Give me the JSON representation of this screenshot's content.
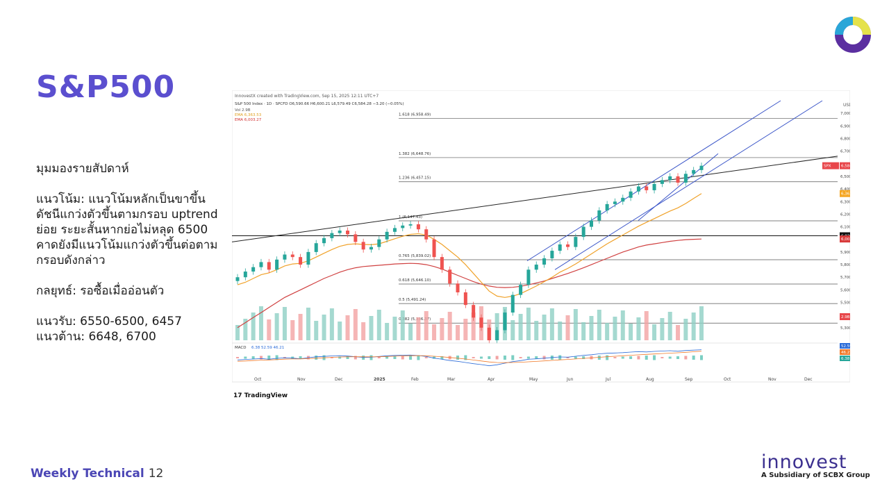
{
  "slide": {
    "title": "S&P500",
    "view_label": "มุมมองรายสัปดาห์",
    "trend_text": "แนวโน้ม: แนวโน้มหลักเป็นขาขึ้น ดัชนีแกว่งตัวขึ้นตามกรอบ uptrend ย่อย ระยะสั้นหากย่อไม่หลุด 6500 คาดยังมีแนวโน้มแกว่งตัวขึ้นต่อตามกรอบดังกล่าว",
    "strategy_text": "กลยุทธ์: รอซื้อเมื่ออ่อนตัว",
    "support_text": "แนวรับ: 6550-6500, 6457",
    "resistance_text": "แนวต้าน: 6648, 6700",
    "footer_label": "Weekly Technical",
    "page_number": "12",
    "brand_name": "innovest",
    "brand_tagline": "A Subsidiary of SCBX Group",
    "colors": {
      "accent": "#5b4fcf",
      "brand": "#3b2f8f"
    }
  },
  "chart_data": {
    "type": "line",
    "header": "InnovestX created with TradingView.com, Sep 15, 2025 12:11 UTC+7",
    "symbol_line": "S&P 500 Index · 1D · SPCFD O6,590.66 H6,600.21 L6,579.49 C6,584.28 −3.20 (−0.05%)",
    "indicators": [
      "Vol 2.9B",
      "EMA 6,363.53",
      "EMA 6,003.27"
    ],
    "y_axis_unit": "USD",
    "ylim": [
      5200,
      7100
    ],
    "y_ticks": [
      "7,000.00",
      "6,900.00",
      "6,800.00",
      "6,700.00",
      "6,600.00",
      "6,500.00",
      "6,400.00",
      "6,300.00",
      "6,200.00",
      "6,100.00",
      "6,000.00",
      "5,900.00",
      "5,800.00",
      "5,700.00",
      "5,600.00",
      "5,500.00",
      "5,400.00",
      "5,300.00"
    ],
    "x_ticks": [
      "Oct",
      "Nov",
      "Dec",
      "2025",
      "Feb",
      "Mar",
      "Apr",
      "May",
      "Jun",
      "Jul",
      "Aug",
      "Sep",
      "Oct",
      "Nov",
      "Dec"
    ],
    "fib_levels": [
      {
        "label": "1.618 (6,958.49)",
        "value": 6958.49
      },
      {
        "label": "1.382 (6,648.76)",
        "value": 6648.76
      },
      {
        "label": "1.236 (6,457.15)",
        "value": 6457.15
      },
      {
        "label": "1 (6,147.43)",
        "value": 6147.43
      },
      {
        "label": "0.765 (5,839.02)",
        "value": 5839.02
      },
      {
        "label": "0.618 (5,646.10)",
        "value": 5646.1
      },
      {
        "label": "0.5 (5,491.24)",
        "value": 5491.24
      },
      {
        "label": "0.382 (5,336.37)",
        "value": 5336.37
      }
    ],
    "horizontal_line": 6028.77,
    "price_labels": [
      {
        "text": "6,584.28",
        "value": 6584.28,
        "color": "#e8464a",
        "tag": "SPX"
      },
      {
        "text": "6,363.53",
        "value": 6363.53,
        "color": "#f5a623"
      },
      {
        "text": "6,028.77",
        "value": 6028.77,
        "color": "#111111"
      },
      {
        "text": "6,003.27",
        "value": 6003.27,
        "color": "#d83a3a"
      }
    ],
    "volume_label": "2.9B",
    "macd": {
      "label": "MACD",
      "values": "6.38 52.59 46.21",
      "right_values": [
        "52.59",
        "46.21",
        "6.38"
      ]
    },
    "close": [
      5700,
      5745,
      5780,
      5820,
      5760,
      5840,
      5880,
      5860,
      5800,
      5900,
      5970,
      6010,
      6050,
      6070,
      6040,
      5980,
      5920,
      5940,
      6000,
      6060,
      6090,
      6110,
      6120,
      6080,
      6000,
      5860,
      5760,
      5650,
      5580,
      5480,
      5380,
      5300,
      5200,
      5280,
      5420,
      5560,
      5640,
      5760,
      5800,
      5850,
      5910,
      5960,
      5940,
      6020,
      6100,
      6150,
      6230,
      6280,
      6300,
      6330,
      6380,
      6420,
      6390,
      6440,
      6470,
      6500,
      6450,
      6520,
      6550,
      6584
    ],
    "ema_fast": [
      5640,
      5660,
      5690,
      5720,
      5735,
      5760,
      5790,
      5805,
      5810,
      5830,
      5860,
      5890,
      5920,
      5945,
      5960,
      5965,
      5960,
      5958,
      5965,
      5985,
      6005,
      6025,
      6040,
      6045,
      6035,
      6000,
      5960,
      5910,
      5860,
      5800,
      5730,
      5660,
      5590,
      5550,
      5540,
      5550,
      5570,
      5600,
      5630,
      5665,
      5700,
      5740,
      5770,
      5805,
      5845,
      5885,
      5925,
      5965,
      6000,
      6035,
      6070,
      6105,
      6135,
      6165,
      6195,
      6225,
      6250,
      6285,
      6325,
      6363
    ],
    "ema_slow": [
      5300,
      5340,
      5380,
      5420,
      5460,
      5500,
      5540,
      5570,
      5600,
      5630,
      5660,
      5690,
      5715,
      5740,
      5760,
      5775,
      5785,
      5790,
      5795,
      5800,
      5805,
      5808,
      5810,
      5808,
      5800,
      5785,
      5765,
      5740,
      5715,
      5690,
      5665,
      5645,
      5630,
      5620,
      5618,
      5620,
      5628,
      5640,
      5655,
      5670,
      5690,
      5710,
      5730,
      5752,
      5775,
      5800,
      5825,
      5850,
      5875,
      5900,
      5920,
      5940,
      5955,
      5965,
      5975,
      5985,
      5992,
      5998,
      6001,
      6003
    ]
  }
}
